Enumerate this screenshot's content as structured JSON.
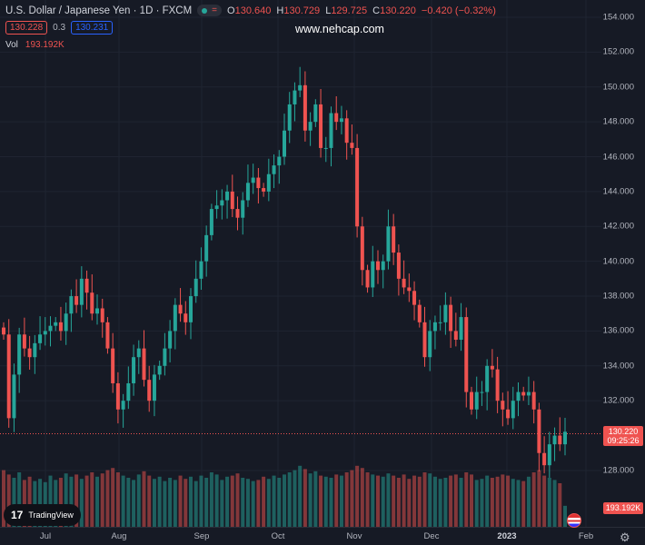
{
  "header": {
    "symbol_title": "U.S. Dollar / Japanese Yen · 1D · FXCM",
    "ohlc": [
      {
        "k": "O",
        "v": "130.640"
      },
      {
        "k": "H",
        "v": "130.729"
      },
      {
        "k": "L",
        "v": "129.725"
      },
      {
        "k": "C",
        "v": "130.220"
      }
    ],
    "change": "−0.420 (−0.32%)",
    "sell_price": "130.228",
    "spread": "0.3",
    "buy_price": "130.231",
    "vol_label": "Vol",
    "vol_value": "193.192K",
    "watermark": "www.nehcap.com"
  },
  "price_label": {
    "price": "130.220",
    "countdown": "09:25:26"
  },
  "volume_label": "193.192K",
  "branding": "TradingView",
  "colors": {
    "up": "#26a69a",
    "down": "#ef5350",
    "bg": "#161a25",
    "grid": "#1f2431"
  },
  "chart_data": {
    "type": "candlestick",
    "title": "U.S. Dollar / Japanese Yen · 1D · FXCM",
    "ylim": [
      127.1,
      155
    ],
    "y_ticks": [
      "154.000",
      "152.000",
      "150.000",
      "148.000",
      "146.000",
      "144.000",
      "142.000",
      "140.000",
      "138.000",
      "136.000",
      "134.000",
      "132.000",
      "128.000"
    ],
    "x_ticks": [
      "Jul",
      "Aug",
      "Sep",
      "Oct",
      "Nov",
      "Dec",
      "2023",
      "Feb"
    ],
    "first_open": 136.2,
    "close": [
      135.8,
      131.0,
      133.5,
      135.8,
      135.0,
      134.5,
      135.3,
      135.8,
      136.0,
      136.3,
      136.5,
      136.0,
      137.0,
      138.0,
      137.5,
      139.0,
      138.2,
      137.0,
      137.3,
      136.5,
      135.0,
      133.0,
      131.5,
      132.0,
      133.0,
      134.5,
      135.0,
      133.2,
      132.0,
      133.5,
      134.0,
      135.0,
      136.0,
      137.5,
      137.0,
      136.5,
      138.0,
      139.0,
      140.0,
      141.5,
      143.0,
      143.2,
      143.5,
      144.0,
      143.0,
      142.5,
      143.5,
      144.5,
      144.8,
      144.2,
      144.0,
      145.0,
      145.5,
      146.0,
      147.5,
      149.0,
      149.8,
      150.1,
      147.5,
      148.0,
      149.0,
      146.5,
      146.5,
      148.5,
      148.0,
      148.2,
      146.8,
      146.5,
      142.0,
      139.5,
      138.5,
      140.0,
      139.5,
      140.0,
      142.0,
      140.5,
      139.0,
      138.5,
      138.3,
      137.5,
      136.5,
      134.5,
      136.0,
      136.5,
      136.5,
      137.5,
      136.0,
      135.5,
      136.8,
      132.5,
      131.5,
      132.5,
      132.5,
      134.0,
      133.8,
      132.0,
      131.5,
      131.0,
      132.0,
      132.5,
      132.3,
      132.5,
      131.5,
      129.0,
      128.3,
      129.5,
      130.0,
      129.5,
      130.22
    ],
    "volume_k": [
      520,
      480,
      450,
      500,
      430,
      460,
      420,
      440,
      410,
      470,
      430,
      450,
      490,
      460,
      480,
      440,
      470,
      500,
      460,
      490,
      520,
      540,
      500,
      470,
      450,
      430,
      480,
      510,
      470,
      440,
      460,
      420,
      450,
      430,
      470,
      440,
      460,
      420,
      470,
      450,
      500,
      480,
      430,
      460,
      470,
      490,
      450,
      440,
      420,
      430,
      460,
      440,
      470,
      450,
      480,
      500,
      520,
      560,
      530,
      490,
      510,
      470,
      460,
      450,
      480,
      470,
      500,
      520,
      560,
      540,
      500,
      480,
      470,
      460,
      490,
      470,
      450,
      480,
      440,
      470,
      460,
      500,
      490,
      460,
      440,
      450,
      470,
      480,
      450,
      500,
      480,
      430,
      440,
      470,
      450,
      460,
      480,
      470,
      440,
      430,
      420,
      460,
      500,
      520,
      470,
      450,
      430,
      400,
      193
    ]
  }
}
